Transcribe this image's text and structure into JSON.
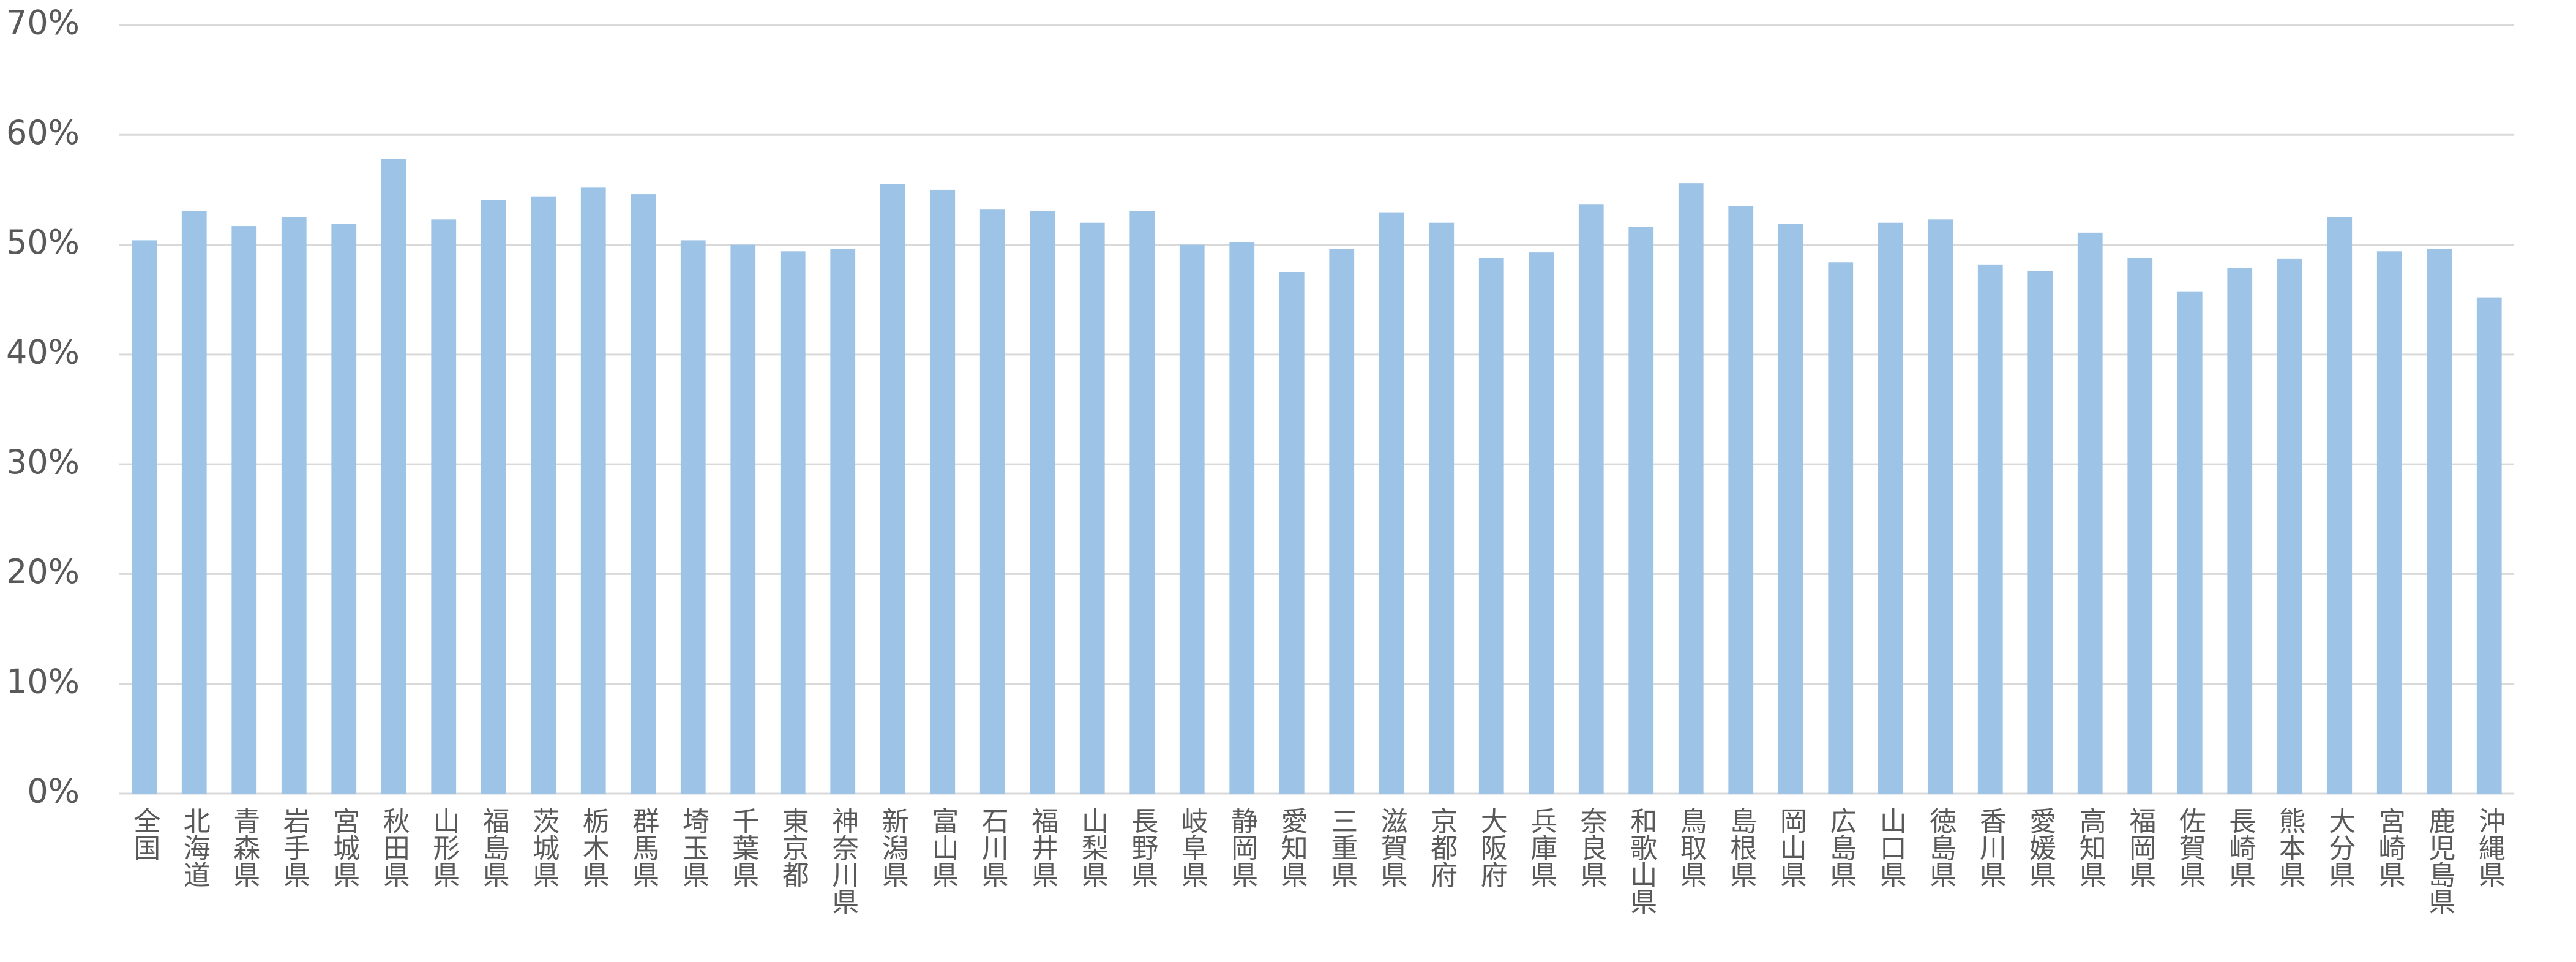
{
  "chart_data": {
    "type": "bar",
    "categories": [
      "全国",
      "北海道",
      "青森県",
      "岩手県",
      "宮城県",
      "秋田県",
      "山形県",
      "福島県",
      "茨城県",
      "栃木県",
      "群馬県",
      "埼玉県",
      "千葉県",
      "東京都",
      "神奈川県",
      "新潟県",
      "富山県",
      "石川県",
      "福井県",
      "山梨県",
      "長野県",
      "岐阜県",
      "静岡県",
      "愛知県",
      "三重県",
      "滋賀県",
      "京都府",
      "大阪府",
      "兵庫県",
      "奈良県",
      "和歌山県",
      "鳥取県",
      "島根県",
      "岡山県",
      "広島県",
      "山口県",
      "徳島県",
      "香川県",
      "愛媛県",
      "高知県",
      "福岡県",
      "佐賀県",
      "長崎県",
      "熊本県",
      "大分県",
      "宮崎県",
      "鹿児島県",
      "沖縄県"
    ],
    "values": [
      50.4,
      53.1,
      51.7,
      52.5,
      51.9,
      57.8,
      52.3,
      54.1,
      54.4,
      55.2,
      54.6,
      50.4,
      50.0,
      49.4,
      49.6,
      55.5,
      55.0,
      53.2,
      53.1,
      52.0,
      53.1,
      50.0,
      50.2,
      47.5,
      49.6,
      52.9,
      52.0,
      48.8,
      49.3,
      53.7,
      51.6,
      55.6,
      53.5,
      51.9,
      48.4,
      52.0,
      52.3,
      48.2,
      47.6,
      51.1,
      48.8,
      45.7,
      47.9,
      48.7,
      52.5,
      49.4,
      49.6,
      45.2
    ],
    "color": "#9dc3e6",
    "ylim": [
      0,
      70
    ],
    "yticks": [
      {
        "value": 0,
        "label": "0%"
      },
      {
        "value": 10,
        "label": "10%"
      },
      {
        "value": 20,
        "label": "20%"
      },
      {
        "value": 30,
        "label": "30%"
      },
      {
        "value": 40,
        "label": "40%"
      },
      {
        "value": 50,
        "label": "50%"
      },
      {
        "value": 60,
        "label": "60%"
      },
      {
        "value": 70,
        "label": "70%"
      }
    ],
    "grid": true
  }
}
